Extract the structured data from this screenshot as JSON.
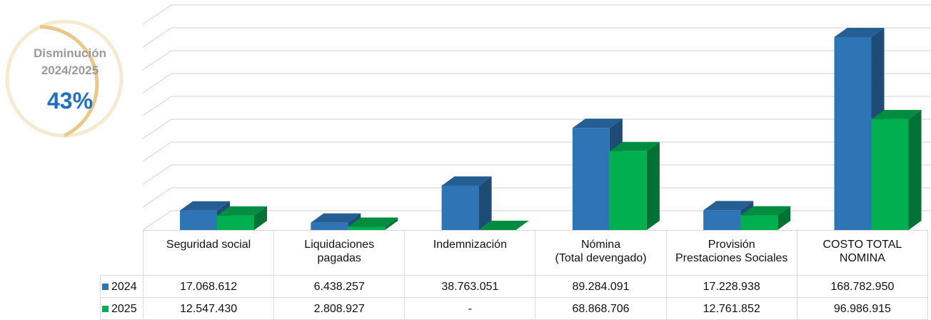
{
  "gauge": {
    "label": [
      "Disminución",
      "2024/2025"
    ],
    "value": 43,
    "value_label": "43%"
  },
  "chart_data": {
    "type": "bar3d",
    "categories": [
      "Seguridad social",
      "Liquidaciones\npagadas",
      "Indemnización",
      "Nómina\n(Total devengado)",
      "Provisión\nPrestaciones Sociales",
      "COSTO TOTAL\nNOMINA"
    ],
    "series": [
      {
        "name": "2024",
        "color": "#2e75b6",
        "values": [
          17068612,
          6438257,
          38763051,
          89284091,
          17228938,
          168782950
        ],
        "value_labels": [
          "17.068.612",
          "6.438.257",
          "38.763.051",
          "89.284.091",
          "17.228.938",
          "168.782.950"
        ]
      },
      {
        "name": "2025",
        "color": "#00b050",
        "values": [
          12547430,
          2808927,
          0,
          68868706,
          12761852,
          96986915
        ],
        "value_labels": [
          "12.547.430",
          "2.808.927",
          "-",
          "68.868.706",
          "12.761.852",
          "96.986.915"
        ]
      }
    ],
    "ylim": [
      0,
      180000000
    ],
    "yticks": [
      0,
      20000000,
      40000000,
      60000000,
      80000000,
      100000000,
      120000000,
      140000000,
      160000000,
      180000000
    ],
    "grid": true
  }
}
